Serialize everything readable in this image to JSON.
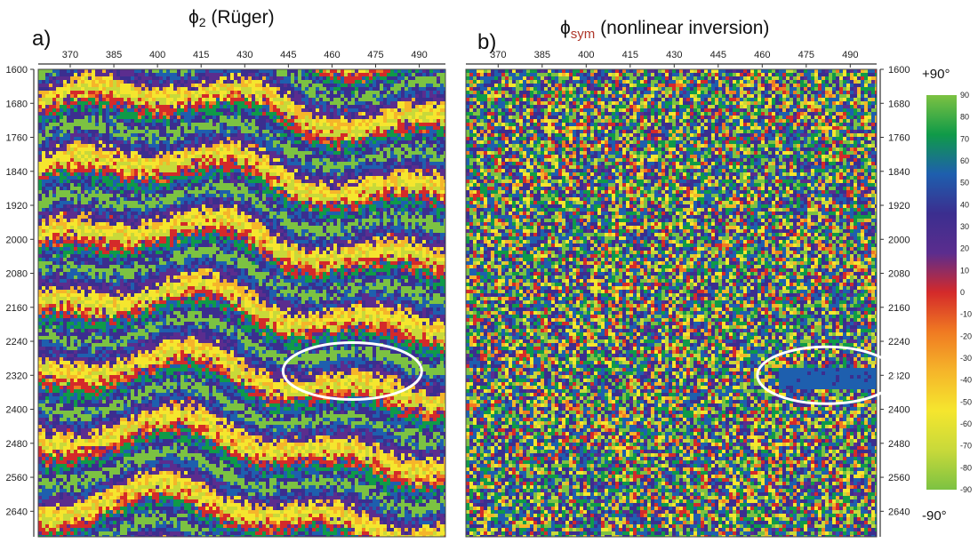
{
  "figure": {
    "panel_a": {
      "label": "a)",
      "title_symbol": "ϕ",
      "title_sub": "2",
      "title_text": " (Rüger)"
    },
    "panel_b": {
      "label": "b)",
      "title_symbol": "ϕ",
      "title_sub": "sym",
      "title_text": " (nonlinear inversion)"
    },
    "colorbar": {
      "top_label": "+90°",
      "bottom_label": "-90°"
    }
  },
  "chart_data": [
    {
      "type": "heatmap",
      "title": "ϕ2 (Rüger)",
      "panel_label": "a)",
      "x_ticks": [
        370,
        385,
        400,
        415,
        430,
        445,
        460,
        475,
        490
      ],
      "y_ticks": [
        1600,
        1680,
        1760,
        1840,
        1920,
        2000,
        2080,
        2160,
        2240,
        2320,
        2400,
        2480,
        2560,
        2640
      ],
      "xlim": [
        359,
        499
      ],
      "ylim": [
        1600,
        2700
      ],
      "y_inverted": true,
      "pattern": "layered",
      "annotation": {
        "shape": "ellipse",
        "x_center": 467,
        "y_center": 2310
      }
    },
    {
      "type": "heatmap",
      "title": "ϕsym (nonlinear inversion)",
      "panel_label": "b)",
      "x_ticks": [
        370,
        385,
        400,
        415,
        430,
        445,
        460,
        475,
        490
      ],
      "y_ticks": [
        1600,
        1680,
        1760,
        1840,
        1920,
        2000,
        2080,
        2160,
        2240,
        2320,
        2400,
        2480,
        2560,
        2640
      ],
      "xlim": [
        359,
        499
      ],
      "ylim": [
        1600,
        2700
      ],
      "y_inverted": true,
      "pattern": "noisy",
      "annotation": {
        "shape": "ellipse",
        "x_center": 482,
        "y_center": 2320
      }
    },
    {
      "type": "colorbar",
      "ticks": [
        90,
        80,
        70,
        60,
        50,
        40,
        30,
        20,
        10,
        0,
        -10,
        -20,
        -30,
        -40,
        -50,
        -60,
        -70,
        -80,
        -90
      ],
      "range": [
        -90,
        90
      ],
      "colors": [
        "#7cc242",
        "#0f9a48",
        "#1e5fae",
        "#3b2e8f",
        "#5b2d8e",
        "#d42a2a",
        "#f07a22",
        "#f5b52a",
        "#f5e62e",
        "#c8d93a",
        "#7cc242"
      ]
    }
  ]
}
